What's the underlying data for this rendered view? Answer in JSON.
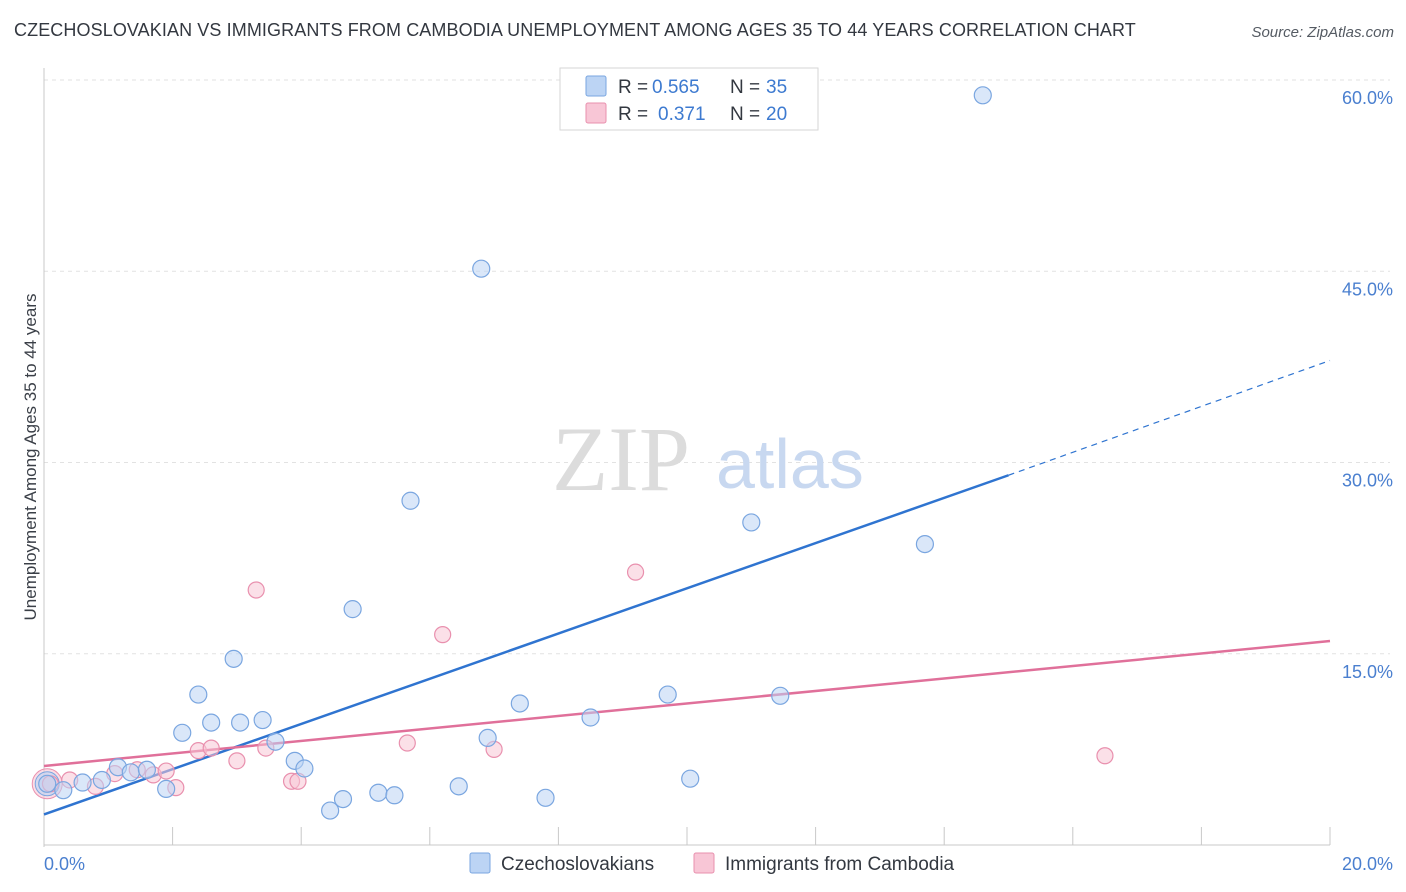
{
  "title": "CZECHOSLOVAKIAN VS IMMIGRANTS FROM CAMBODIA UNEMPLOYMENT AMONG AGES 35 TO 44 YEARS CORRELATION CHART",
  "source": "Source: ZipAtlas.com",
  "watermark": {
    "part1": "ZIP",
    "part2": "atlas"
  },
  "colors": {
    "blue_fill": "#bcd4f4",
    "blue_stroke": "#7aa6e0",
    "blue_line": "#2f74d0",
    "pink_fill": "#f8c6d6",
    "pink_stroke": "#e990ae",
    "pink_line": "#e0709a",
    "tick_text": "#4a7fcf",
    "grid": "#e2e2e2"
  },
  "legend": {
    "rows": [
      {
        "r_label": "R = ",
        "r_value": "0.565",
        "n_label": "N = ",
        "n_value": "35"
      },
      {
        "r_label": "R = ",
        "r_value": "0.371",
        "n_label": "N = ",
        "n_value": "20"
      }
    ]
  },
  "chart_data": {
    "type": "scatter",
    "title": "CZECHOSLOVAKIAN VS IMMIGRANTS FROM CAMBODIA UNEMPLOYMENT AMONG AGES 35 TO 44 YEARS CORRELATION CHART",
    "xlabel": "",
    "ylabel": "Unemployment Among Ages 35 to 44 years",
    "xlim": [
      0,
      20
    ],
    "ylim": [
      0,
      60
    ],
    "x_tick_labels": [
      {
        "value": 0,
        "label": "0.0%"
      },
      {
        "value": 20,
        "label": "20.0%"
      }
    ],
    "y_tick_labels": [
      {
        "value": 15,
        "label": "15.0%"
      },
      {
        "value": 30,
        "label": "30.0%"
      },
      {
        "value": 45,
        "label": "45.0%"
      },
      {
        "value": 60,
        "label": "60.0%"
      }
    ],
    "grid": true,
    "legend_position": "top-center",
    "series": [
      {
        "name": "Czechoslovakians",
        "R": 0.565,
        "N": 35,
        "points": [
          [
            0.05,
            4.8
          ],
          [
            0.3,
            4.3
          ],
          [
            0.6,
            4.9
          ],
          [
            0.9,
            5.1
          ],
          [
            1.15,
            6.1
          ],
          [
            1.35,
            5.7
          ],
          [
            1.6,
            5.9
          ],
          [
            1.9,
            4.4
          ],
          [
            2.15,
            8.8
          ],
          [
            2.4,
            11.8
          ],
          [
            2.6,
            9.6
          ],
          [
            2.95,
            14.6
          ],
          [
            3.05,
            9.6
          ],
          [
            3.4,
            9.8
          ],
          [
            3.6,
            8.1
          ],
          [
            3.9,
            6.6
          ],
          [
            4.05,
            6.0
          ],
          [
            4.45,
            2.7
          ],
          [
            4.65,
            3.6
          ],
          [
            4.8,
            18.5
          ],
          [
            5.2,
            4.1
          ],
          [
            5.45,
            3.9
          ],
          [
            5.7,
            27.0
          ],
          [
            6.45,
            4.6
          ],
          [
            6.8,
            45.2
          ],
          [
            6.9,
            8.4
          ],
          [
            7.4,
            11.1
          ],
          [
            7.8,
            3.7
          ],
          [
            8.5,
            10.0
          ],
          [
            9.7,
            11.8
          ],
          [
            10.05,
            5.2
          ],
          [
            11.0,
            25.3
          ],
          [
            11.45,
            11.7
          ],
          [
            13.7,
            23.6
          ],
          [
            14.6,
            58.8
          ]
        ]
      },
      {
        "name": "Immigrants from Cambodia",
        "R": 0.371,
        "N": 20,
        "points": [
          [
            0.1,
            4.8
          ],
          [
            0.4,
            5.1
          ],
          [
            0.8,
            4.6
          ],
          [
            1.1,
            5.6
          ],
          [
            1.45,
            5.9
          ],
          [
            1.7,
            5.5
          ],
          [
            1.9,
            5.8
          ],
          [
            2.05,
            4.5
          ],
          [
            2.4,
            7.4
          ],
          [
            2.6,
            7.6
          ],
          [
            3.0,
            6.6
          ],
          [
            3.3,
            20.0
          ],
          [
            3.45,
            7.6
          ],
          [
            3.85,
            5.0
          ],
          [
            3.95,
            5.0
          ],
          [
            5.65,
            8.0
          ],
          [
            6.2,
            16.5
          ],
          [
            7.0,
            7.5
          ],
          [
            9.2,
            21.4
          ],
          [
            16.5,
            7.0
          ]
        ]
      }
    ],
    "trend_lines": [
      {
        "series": "Czechoslovakians",
        "x_start": 0,
        "y_start": 2.4,
        "x_end": 15.0,
        "y_end": 29.0,
        "dashed_to_x": 20,
        "dashed_to_y": 38.0
      },
      {
        "series": "Immigrants from Cambodia",
        "x_start": 0,
        "y_start": 6.2,
        "x_end": 20,
        "y_end": 16.0
      }
    ]
  }
}
